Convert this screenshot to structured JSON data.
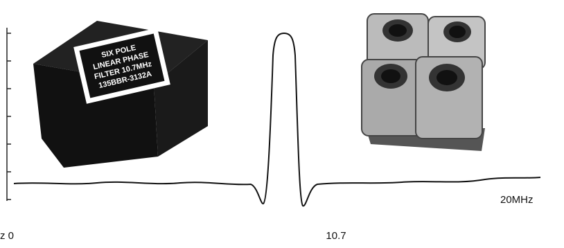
{
  "filter_label": {
    "lines": [
      "SIX POLE",
      "LINEAR PHASE",
      "FILTER 10.7MHz",
      "135BBR-3132A"
    ]
  },
  "axis": {
    "start_label": "z 0",
    "center_label": "10.7",
    "end_label": "20MHz"
  }
}
